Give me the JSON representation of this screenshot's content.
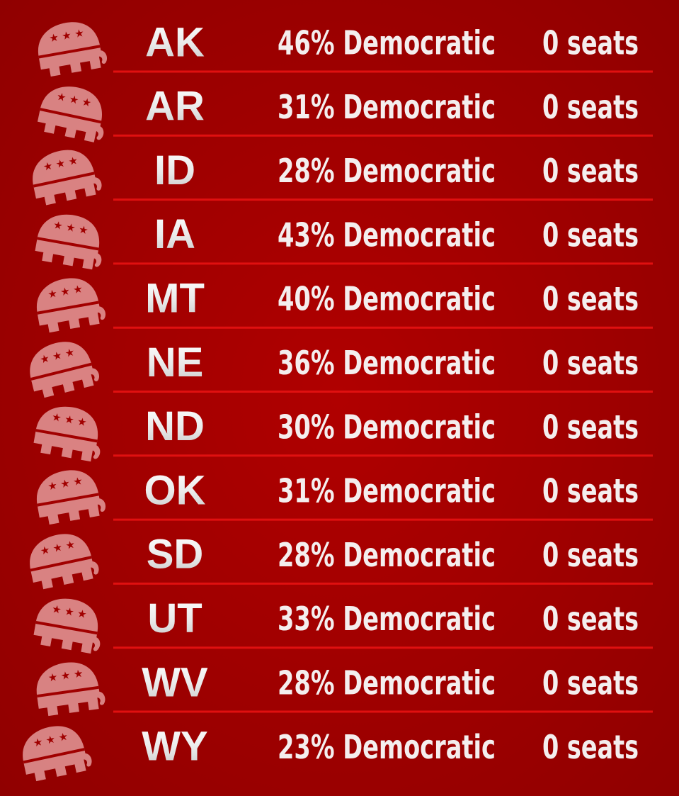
{
  "table": {
    "rows": [
      [
        "AK",
        "46% Democratic",
        "0 seats"
      ],
      [
        "AR",
        "31% Democratic",
        "0 seats"
      ],
      [
        "ID",
        "28% Democratic",
        "0 seats"
      ],
      [
        "IA",
        "43% Democratic",
        "0 seats"
      ],
      [
        "MT",
        "40% Democratic",
        "0 seats"
      ],
      [
        "NE",
        "36% Democratic",
        "0 seats"
      ],
      [
        "ND",
        "30% Democratic",
        "0 seats"
      ],
      [
        "OK",
        "31% Democratic",
        "0 seats"
      ],
      [
        "SD",
        "28% Democratic",
        "0 seats"
      ],
      [
        "UT",
        "33% Democratic",
        "0 seats"
      ],
      [
        "WV",
        "28% Democratic",
        "0 seats"
      ],
      [
        "WY",
        "23% Democratic",
        "0 seats"
      ]
    ]
  }
}
